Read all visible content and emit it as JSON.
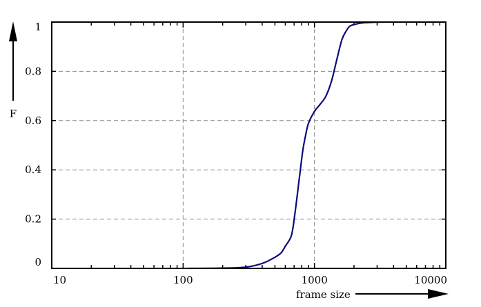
{
  "chart_data": {
    "type": "line",
    "title": "",
    "xlabel": "frame size",
    "ylabel": "F",
    "x_scale": "log",
    "xlim": [
      10,
      10000
    ],
    "ylim": [
      0,
      1
    ],
    "x_ticks": [
      10,
      100,
      1000,
      10000
    ],
    "x_tick_labels": [
      "10",
      "100",
      "1000",
      "10000"
    ],
    "y_ticks": [
      0,
      0.2,
      0.4,
      0.6,
      0.8,
      1
    ],
    "y_tick_labels": [
      "0",
      "0.2",
      "0.4",
      "0.6",
      "0.8",
      "1"
    ],
    "grid": true,
    "grid_style": "dashed",
    "colors": {
      "line": "#0a0a7a",
      "grid": "#888888",
      "axis": "#000000"
    },
    "series": [
      {
        "x": [
          110,
          200,
          300,
          400,
          500,
          557,
          600,
          667,
          708,
          767,
          815,
          860,
          902,
          1000,
          1100,
          1219,
          1346,
          1459,
          1614,
          1750,
          1857,
          2000,
          2366,
          3150
        ],
        "y": [
          0.0,
          0.001,
          0.005,
          0.02,
          0.045,
          0.063,
          0.09,
          0.133,
          0.217,
          0.366,
          0.478,
          0.545,
          0.59,
          0.637,
          0.665,
          0.698,
          0.759,
          0.834,
          0.927,
          0.965,
          0.983,
          0.99,
          0.997,
          1.0
        ]
      }
    ]
  }
}
